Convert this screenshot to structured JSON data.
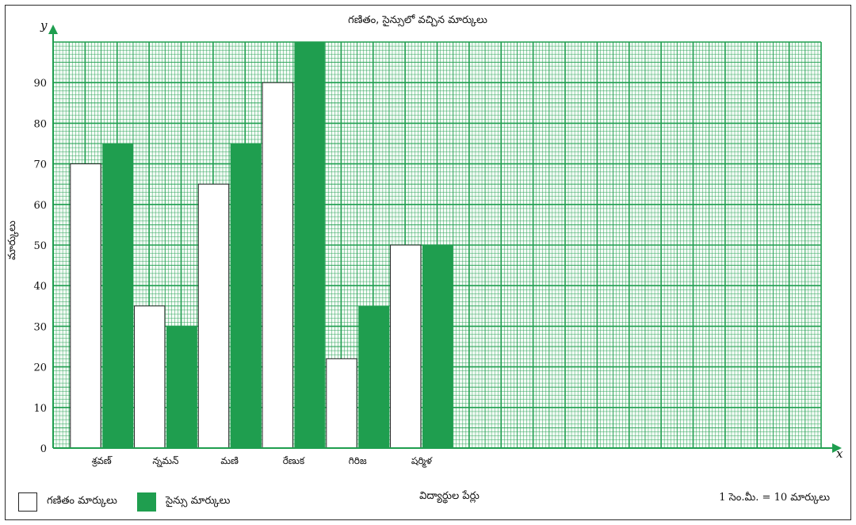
{
  "chart_data": {
    "type": "bar",
    "title": "గణితం, సైన్సులో వచ్చిన మార్కులు",
    "xlabel": "విద్యార్థుల పేర్లు",
    "ylabel": "మార్కులు",
    "x_axis_letter": "x",
    "y_axis_letter": "y",
    "categories": [
      "శ్రవణ్",
      "న్నమన్",
      "మణి",
      "రేణుక",
      "గిరిజ",
      "షర్మిళ"
    ],
    "series": [
      {
        "name": "గణితం మార్కులు",
        "values": [
          70,
          35,
          65,
          90,
          22,
          50
        ],
        "color": "#ffffff"
      },
      {
        "name": "సైన్సు మార్కులు",
        "values": [
          75,
          30,
          75,
          100,
          35,
          50
        ],
        "color": "#1f9e4f"
      }
    ],
    "ylim": [
      0,
      100
    ],
    "yticks": [
      0,
      10,
      20,
      30,
      40,
      50,
      60,
      70,
      80,
      90
    ],
    "grid": true,
    "grid_color": "#1f9e4f",
    "scale_note": "1 సెం.మీ. = 10 మార్కులు",
    "legend_position": "bottom-left"
  }
}
